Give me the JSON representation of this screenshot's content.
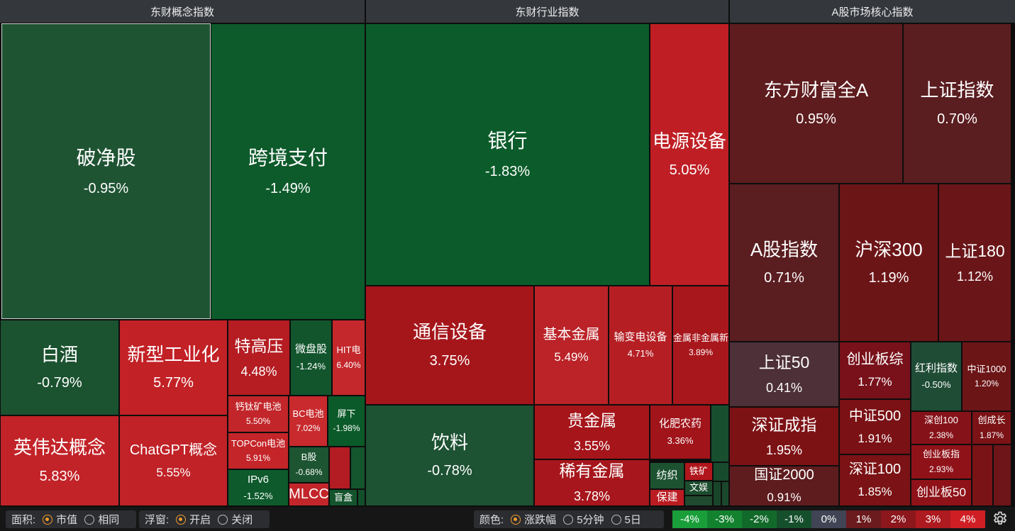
{
  "sections": [
    {
      "title": "东财概念指数"
    },
    {
      "title": "东财行业指数"
    },
    {
      "title": "A股市场核心指数"
    }
  ],
  "tiles": [
    {
      "name": "破净股",
      "pct": "-0.95%",
      "color": "#1f5433"
    },
    {
      "name": "跨境支付",
      "pct": "-1.49%",
      "color": "#0d5a2b"
    },
    {
      "name": "白酒",
      "pct": "-0.79%",
      "color": "#1b5230"
    },
    {
      "name": "新型工业化",
      "pct": "5.77%",
      "color": "#c22126"
    },
    {
      "name": "特高压",
      "pct": "4.48%",
      "color": "#b51d22"
    },
    {
      "name": "微盘股",
      "pct": "-1.24%",
      "color": "#12552d"
    },
    {
      "name": "HIT电",
      "pct": "6.40%",
      "color": "#c4282c"
    },
    {
      "name": "钙钛矿电池",
      "pct": "5.50%",
      "color": "#c2262a"
    },
    {
      "name": "BC电池",
      "pct": "7.02%",
      "color": "#c82a2d"
    },
    {
      "name": "屏下",
      "pct": "-1.98%",
      "color": "#0b5a29"
    },
    {
      "name": "TOPCon电池",
      "pct": "5.91%",
      "color": "#c42529"
    },
    {
      "name": "B股",
      "pct": "-0.68%",
      "color": "#1d5431"
    },
    {
      "name": "IPv6",
      "pct": "-1.52%",
      "color": "#0e5a2c"
    },
    {
      "name": "MLCC",
      "pct": "",
      "color": "#c2262a"
    },
    {
      "name": "盲盒",
      "pct": "",
      "color": "#14542d"
    },
    {
      "name": "英伟达概念",
      "pct": "5.83%",
      "color": "#c22328"
    },
    {
      "name": "ChatGPT概念",
      "pct": "5.55%",
      "color": "#c02227"
    },
    {
      "name": "银行",
      "pct": "-1.83%",
      "color": "#0b5c2a"
    },
    {
      "name": "电源设备",
      "pct": "5.05%",
      "color": "#bf1f24"
    },
    {
      "name": "通信设备",
      "pct": "3.75%",
      "color": "#a5161b"
    },
    {
      "name": "基本金属",
      "pct": "5.49%",
      "color": "#bb2328"
    },
    {
      "name": "输变电设备",
      "pct": "4.71%",
      "color": "#b51f24"
    },
    {
      "name": "金属非金属新",
      "pct": "3.89%",
      "color": "#a8171c"
    },
    {
      "name": "饮料",
      "pct": "-0.78%",
      "color": "#1d5233"
    },
    {
      "name": "贵金属",
      "pct": "3.55%",
      "color": "#a5151a"
    },
    {
      "name": "化肥农药",
      "pct": "3.36%",
      "color": "#a0141a"
    },
    {
      "name": "稀有金属",
      "pct": "3.78%",
      "color": "#a6161c"
    },
    {
      "name": "纺织",
      "pct": "",
      "color": "#1d5230"
    },
    {
      "name": "铁矿",
      "pct": "",
      "color": "#b0161c"
    },
    {
      "name": "保建",
      "pct": "",
      "color": "#bb1c22"
    },
    {
      "name": "文娱",
      "pct": "",
      "color": "#1c4d2e"
    },
    {
      "name": "东方财富全A",
      "pct": "0.95%",
      "color": "#5e1c1e"
    },
    {
      "name": "上证指数",
      "pct": "0.70%",
      "color": "#5a1d20"
    },
    {
      "name": "A股指数",
      "pct": "0.71%",
      "color": "#5a1d20"
    },
    {
      "name": "沪深300",
      "pct": "1.19%",
      "color": "#6c1517"
    },
    {
      "name": "上证180",
      "pct": "1.12%",
      "color": "#6a1619"
    },
    {
      "name": "上证50",
      "pct": "0.41%",
      "color": "#4d3038"
    },
    {
      "name": "创业板综",
      "pct": "1.77%",
      "color": "#78111a"
    },
    {
      "name": "红利指数",
      "pct": "-0.50%",
      "color": "#1f4c35"
    },
    {
      "name": "中证1000",
      "pct": "1.20%",
      "color": "#6c1517"
    },
    {
      "name": "深证成指",
      "pct": "1.95%",
      "color": "#7d1215"
    },
    {
      "name": "中证500",
      "pct": "1.91%",
      "color": "#7a1115"
    },
    {
      "name": "深创100",
      "pct": "2.38%",
      "color": "#861219"
    },
    {
      "name": "创成长",
      "pct": "1.87%",
      "color": "#7a1216"
    },
    {
      "name": "创业板指",
      "pct": "2.93%",
      "color": "#901219"
    },
    {
      "name": "国证2000",
      "pct": "0.91%",
      "color": "#5e1c1e"
    },
    {
      "name": "深证100",
      "pct": "1.85%",
      "color": "#7b1215"
    },
    {
      "name": "创业板50",
      "pct": "",
      "color": "#8e1218"
    }
  ],
  "fillers": [
    {
      "color": "#1d5231"
    },
    {
      "color": "#b21c22"
    },
    {
      "color": "#14552e"
    },
    {
      "color": "#184f2f"
    },
    {
      "color": "#124f2b"
    },
    {
      "color": "#184b2d"
    },
    {
      "color": "#1f4a30"
    },
    {
      "color": "#18452a"
    },
    {
      "color": "#1b472c"
    },
    {
      "color": "#7a1315"
    },
    {
      "color": "#6d1518"
    }
  ],
  "bottom": {
    "area": {
      "label": "面积:",
      "options": [
        "市值",
        "相同"
      ],
      "selected": "市值"
    },
    "float": {
      "label": "浮窗:",
      "options": [
        "开启",
        "关闭"
      ],
      "selected": "开启"
    },
    "colorby": {
      "label": "颜色:",
      "options": [
        "涨跌幅",
        "5分钟",
        "5日"
      ],
      "selected": "涨跌幅"
    },
    "legend": [
      {
        "label": "-4%",
        "color": "#1a9e3a"
      },
      {
        "label": "-3%",
        "color": "#12822f"
      },
      {
        "label": "-2%",
        "color": "#126a2a"
      },
      {
        "label": "-1%",
        "color": "#164f2c"
      },
      {
        "label": "0%",
        "color": "#414454"
      },
      {
        "label": "1%",
        "color": "#6b1a1d"
      },
      {
        "label": "2%",
        "color": "#8c171c"
      },
      {
        "label": "3%",
        "color": "#ad1a1f"
      },
      {
        "label": "4%",
        "color": "#cf1f25"
      }
    ],
    "settings_icon": "gear-icon"
  }
}
